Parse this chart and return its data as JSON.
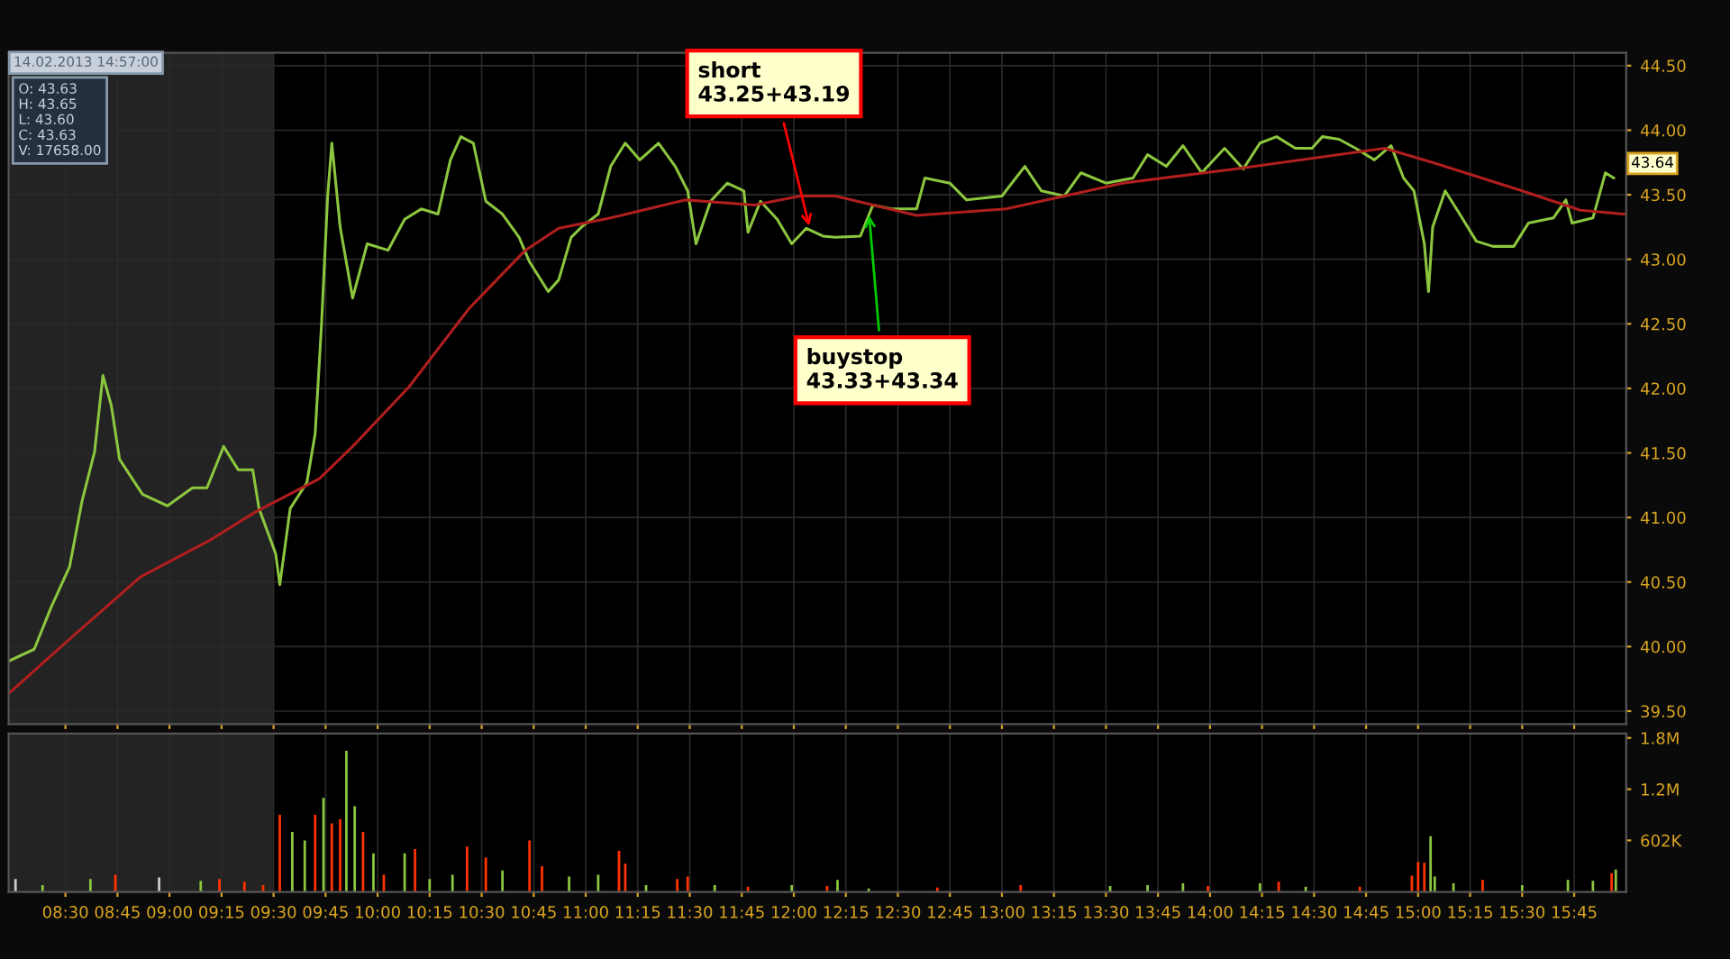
{
  "chart_data": [
    {
      "type": "line",
      "xlim": [
        8.227,
        16.0
      ],
      "ylim": [
        39.4,
        44.6
      ],
      "yticks": [
        {
          "value": 39.5,
          "label": "39.50"
        },
        {
          "value": 40.0,
          "label": "40.00"
        },
        {
          "value": 40.5,
          "label": "40.50"
        },
        {
          "value": 41.0,
          "label": "41.00"
        },
        {
          "value": 41.5,
          "label": "41.50"
        },
        {
          "value": 42.0,
          "label": "42.00"
        },
        {
          "value": 42.5,
          "label": "42.50"
        },
        {
          "value": 43.0,
          "label": "43.00"
        },
        {
          "value": 43.5,
          "label": "43.50"
        },
        {
          "value": 44.0,
          "label": "44.00"
        },
        {
          "value": 44.5,
          "label": "44.50"
        }
      ],
      "xticks": [
        {
          "value": 8.5,
          "label": null
        },
        {
          "value": 8.75,
          "label": null
        },
        {
          "value": 9.0,
          "label": null
        },
        {
          "value": 9.25,
          "label": null
        },
        {
          "value": 9.5,
          "label": null
        },
        {
          "value": 9.75,
          "label": null
        },
        {
          "value": 10.0,
          "label": null
        },
        {
          "value": 10.25,
          "label": null
        },
        {
          "value": 10.5,
          "label": null
        },
        {
          "value": 10.75,
          "label": null
        },
        {
          "value": 11.0,
          "label": null
        },
        {
          "value": 11.25,
          "label": null
        },
        {
          "value": 11.5,
          "label": null
        },
        {
          "value": 11.75,
          "label": null
        },
        {
          "value": 12.0,
          "label": null
        },
        {
          "value": 12.25,
          "label": null
        },
        {
          "value": 12.5,
          "label": null
        },
        {
          "value": 12.75,
          "label": null
        },
        {
          "value": 13.0,
          "label": null
        },
        {
          "value": 13.25,
          "label": null
        },
        {
          "value": 13.5,
          "label": null
        },
        {
          "value": 13.75,
          "label": null
        },
        {
          "value": 14.0,
          "label": null
        },
        {
          "value": 14.25,
          "label": null
        },
        {
          "value": 14.5,
          "label": null
        },
        {
          "value": 14.75,
          "label": null
        },
        {
          "value": 15.0,
          "label": null
        },
        {
          "value": 15.25,
          "label": null
        },
        {
          "value": 15.5,
          "label": null
        },
        {
          "value": 15.75,
          "label": null
        }
      ],
      "tick_labels": "y",
      "grid": true,
      "bands": [
        {
          "axis": "x",
          "from": 8.227,
          "to": 9.5,
          "color": "#232323"
        }
      ],
      "series": [
        {
          "color": "#8cc63f",
          "x": [
            8.23,
            8.35,
            8.43,
            8.52,
            8.58,
            8.64,
            8.68,
            8.72,
            8.76,
            8.87,
            8.99,
            9.11,
            9.18,
            9.26,
            9.33,
            9.4,
            9.43,
            9.51,
            9.53,
            9.58,
            9.66,
            9.7,
            9.73,
            9.76,
            9.78,
            9.82,
            9.88,
            9.95,
            10.05,
            10.13,
            10.21,
            10.29,
            10.35,
            10.4,
            10.46,
            10.52,
            10.6,
            10.68,
            10.73,
            10.82,
            10.87,
            10.93,
            10.98,
            11.06,
            11.12,
            11.19,
            11.26,
            11.35,
            11.43,
            11.49,
            11.53,
            11.6,
            11.68,
            11.76,
            11.78,
            11.84,
            11.92,
            11.99,
            12.06,
            12.14,
            12.2,
            12.32,
            12.38,
            12.47,
            12.59,
            12.63,
            12.75,
            12.83,
            13.0,
            13.11,
            13.19,
            13.3,
            13.38,
            13.5,
            13.63,
            13.7,
            13.79,
            13.87,
            13.96,
            14.07,
            14.16,
            14.24,
            14.32,
            14.41,
            14.49,
            14.54,
            14.62,
            14.7,
            14.79,
            14.87,
            14.93,
            14.98,
            15.03,
            15.05,
            15.07,
            15.13,
            15.2,
            15.28,
            15.36,
            15.46,
            15.53,
            15.65,
            15.71,
            15.74,
            15.84,
            15.9,
            15.94
          ],
          "values": [
            39.89,
            39.98,
            40.3,
            40.62,
            41.13,
            41.51,
            42.1,
            41.87,
            41.45,
            41.18,
            41.09,
            41.23,
            41.23,
            41.55,
            41.37,
            41.37,
            41.07,
            40.72,
            40.48,
            41.07,
            41.27,
            41.65,
            42.48,
            43.49,
            43.9,
            43.25,
            42.7,
            43.12,
            43.07,
            43.31,
            43.39,
            43.35,
            43.77,
            43.95,
            43.9,
            43.45,
            43.35,
            43.17,
            42.98,
            42.75,
            42.84,
            43.17,
            43.25,
            43.35,
            43.72,
            43.9,
            43.77,
            43.9,
            43.72,
            43.53,
            43.12,
            43.45,
            43.59,
            43.53,
            43.21,
            43.45,
            43.31,
            43.12,
            43.24,
            43.18,
            43.17,
            43.18,
            43.42,
            43.39,
            43.39,
            43.63,
            43.59,
            43.46,
            43.49,
            43.72,
            43.53,
            43.49,
            43.67,
            43.59,
            43.63,
            43.81,
            43.72,
            43.88,
            43.67,
            43.86,
            43.7,
            43.9,
            43.95,
            43.86,
            43.86,
            43.95,
            43.93,
            43.86,
            43.77,
            43.88,
            43.63,
            43.53,
            43.12,
            42.75,
            43.25,
            43.53,
            43.35,
            43.14,
            43.1,
            43.1,
            43.28,
            43.32,
            43.46,
            43.28,
            43.32,
            43.67,
            43.63
          ]
        },
        {
          "color": "#b01e1e",
          "x": [
            8.23,
            8.5,
            8.86,
            9.19,
            9.41,
            9.72,
            9.88,
            10.15,
            10.44,
            10.71,
            10.87,
            11.12,
            11.48,
            11.81,
            12.03,
            12.2,
            12.59,
            13.02,
            13.58,
            14.12,
            14.84,
            15.09,
            15.5,
            15.78,
            15.99
          ],
          "values": [
            39.64,
            40.03,
            40.54,
            40.82,
            41.04,
            41.3,
            41.55,
            42.01,
            42.62,
            43.07,
            43.24,
            43.32,
            43.46,
            43.42,
            43.49,
            43.49,
            43.34,
            43.39,
            43.59,
            43.7,
            43.86,
            43.74,
            43.53,
            43.38,
            43.35
          ]
        }
      ],
      "annotations": [
        "14.02.2013 14:57:00",
        "O: 43.63",
        "H: 43.65",
        "L: 43.60",
        "C: 43.63",
        "V: 17658.00",
        {
          "text": "short\n43.25+43.19",
          "x": 12.08,
          "y": 43.22
        },
        {
          "text": "buystop\n43.33+43.34",
          "x": 12.36,
          "y": 43.38
        },
        "43.64"
      ]
    },
    {
      "type": "bar",
      "xlim": [
        8.227,
        16.0
      ],
      "ylim": [
        0,
        1850000
      ],
      "yticks": [
        {
          "value": 602000,
          "label": "602K"
        },
        {
          "value": 1200000,
          "label": "1.2M"
        },
        {
          "value": 1800000,
          "label": "1.8M"
        }
      ],
      "xticks": [
        {
          "value": 8.5,
          "label": "08:30"
        },
        {
          "value": 8.75,
          "label": "08:45"
        },
        {
          "value": 9.0,
          "label": "09:00"
        },
        {
          "value": 9.25,
          "label": "09:15"
        },
        {
          "value": 9.5,
          "label": "09:30"
        },
        {
          "value": 9.75,
          "label": "09:45"
        },
        {
          "value": 10.0,
          "label": "10:00"
        },
        {
          "value": 10.25,
          "label": "10:15"
        },
        {
          "value": 10.5,
          "label": "10:30"
        },
        {
          "value": 10.75,
          "label": "10:45"
        },
        {
          "value": 11.0,
          "label": "11:00"
        },
        {
          "value": 11.25,
          "label": "11:15"
        },
        {
          "value": 11.5,
          "label": "11:30"
        },
        {
          "value": 11.75,
          "label": "11:45"
        },
        {
          "value": 12.0,
          "label": "12:00"
        },
        {
          "value": 12.25,
          "label": "12:15"
        },
        {
          "value": 12.5,
          "label": "12:30"
        },
        {
          "value": 12.75,
          "label": "12:45"
        },
        {
          "value": 13.0,
          "label": "13:00"
        },
        {
          "value": 13.25,
          "label": "13:15"
        },
        {
          "value": 13.5,
          "label": "13:30"
        },
        {
          "value": 13.75,
          "label": "13:45"
        },
        {
          "value": 14.0,
          "label": "14:00"
        },
        {
          "value": 14.25,
          "label": "14:15"
        },
        {
          "value": 14.5,
          "label": "14:30"
        },
        {
          "value": 14.75,
          "label": "14:45"
        },
        {
          "value": 15.0,
          "label": "15:00"
        },
        {
          "value": 15.25,
          "label": "15:15"
        },
        {
          "value": 15.5,
          "label": "15:30"
        },
        {
          "value": 15.75,
          "label": "15:45"
        }
      ],
      "grid": "x",
      "bands": [
        {
          "axis": "x",
          "from": 8.227,
          "to": 9.5,
          "color": "#232323"
        }
      ],
      "x": [
        8.26,
        8.39,
        8.62,
        8.74,
        8.95,
        9.15,
        9.24,
        9.36,
        9.45,
        9.53,
        9.59,
        9.65,
        9.7,
        9.74,
        9.78,
        9.82,
        9.85,
        9.89,
        9.93,
        9.98,
        10.03,
        10.13,
        10.18,
        10.25,
        10.36,
        10.43,
        10.52,
        10.6,
        10.73,
        10.79,
        10.92,
        11.06,
        11.16,
        11.19,
        11.29,
        11.44,
        11.49,
        11.62,
        11.78,
        11.99,
        12.16,
        12.21,
        12.36,
        12.69,
        13.09,
        13.52,
        13.7,
        13.87,
        13.99,
        14.24,
        14.33,
        14.46,
        14.72,
        14.97,
        15.0,
        15.03,
        15.06,
        15.08,
        15.17,
        15.31,
        15.5,
        15.72,
        15.84,
        15.93,
        15.95
      ],
      "values": [
        150000,
        80000,
        150000,
        200000,
        170000,
        130000,
        150000,
        120000,
        80000,
        900000,
        700000,
        600000,
        900000,
        1100000,
        800000,
        850000,
        1650000,
        1000000,
        700000,
        450000,
        200000,
        450000,
        500000,
        150000,
        200000,
        530000,
        400000,
        250000,
        600000,
        300000,
        180000,
        200000,
        480000,
        330000,
        80000,
        150000,
        180000,
        80000,
        60000,
        80000,
        70000,
        140000,
        40000,
        50000,
        80000,
        70000,
        80000,
        100000,
        70000,
        100000,
        120000,
        60000,
        60000,
        190000,
        350000,
        340000,
        650000,
        180000,
        100000,
        140000,
        80000,
        140000,
        130000,
        220000,
        260000
      ],
      "colors": [
        "#cccccc",
        "#8cc63f",
        "#8cc63f",
        "#ff3300",
        "#cccccc",
        "#8cc63f",
        "#ff3300",
        "#ff3300",
        "#ff3300",
        "#ff3300",
        "#8cc63f",
        "#8cc63f",
        "#ff3300",
        "#8cc63f",
        "#ff3300",
        "#ff3300",
        "#8cc63f",
        "#8cc63f",
        "#ff3300",
        "#8cc63f",
        "#ff3300",
        "#8cc63f",
        "#ff3300",
        "#8cc63f",
        "#8cc63f",
        "#ff3300",
        "#ff3300",
        "#8cc63f",
        "#ff3300",
        "#ff3300",
        "#8cc63f",
        "#8cc63f",
        "#ff3300",
        "#ff3300",
        "#8cc63f",
        "#ff3300",
        "#ff3300",
        "#8cc63f",
        "#ff3300",
        "#8cc63f",
        "#ff3300",
        "#8cc63f",
        "#8cc63f",
        "#ff3300",
        "#ff3300",
        "#8cc63f",
        "#8cc63f",
        "#8cc63f",
        "#ff3300",
        "#8cc63f",
        "#ff3300",
        "#8cc63f",
        "#ff3300",
        "#ff3300",
        "#ff3300",
        "#ff3300",
        "#8cc63f",
        "#8cc63f",
        "#8cc63f",
        "#ff3300",
        "#8cc63f",
        "#8cc63f",
        "#8cc63f",
        "#ff3300",
        "#8cc63f"
      ]
    }
  ]
}
